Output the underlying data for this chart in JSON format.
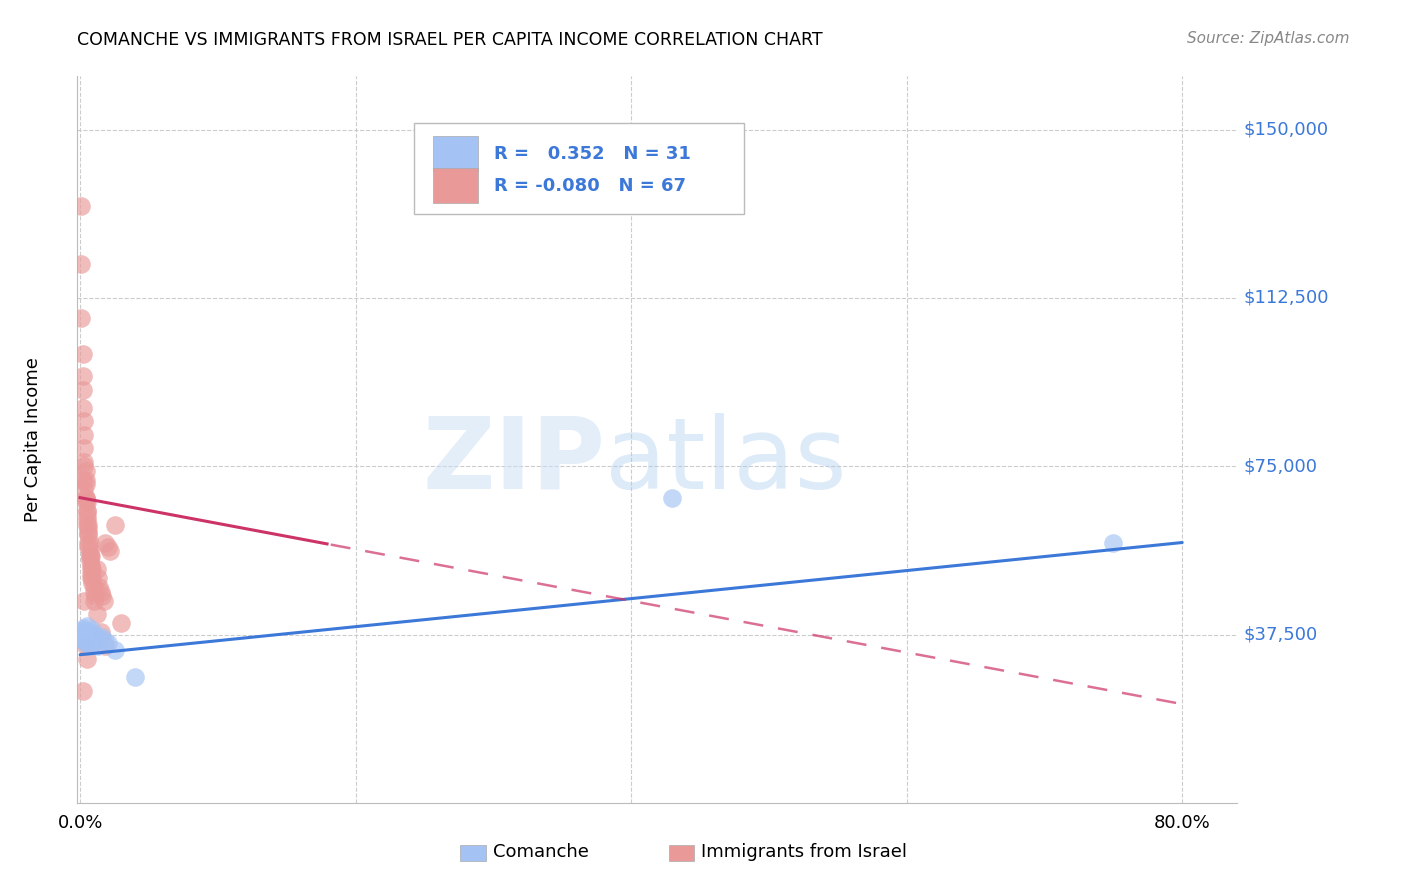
{
  "title": "COMANCHE VS IMMIGRANTS FROM ISRAEL PER CAPITA INCOME CORRELATION CHART",
  "source": "Source: ZipAtlas.com",
  "ylabel": "Per Capita Income",
  "blue_color": "#a4c2f4",
  "pink_color": "#ea9999",
  "blue_line_color": "#3c78d8",
  "pink_line_color": "#cc3366",
  "pink_dash_color": "#cc3366",
  "ylim_max": 162000,
  "xlim_min": -0.002,
  "xlim_max": 0.84,
  "ytick_vals": [
    37500,
    75000,
    112500,
    150000
  ],
  "ytick_labels": [
    "$37,500",
    "$75,000",
    "$112,500",
    "$150,000"
  ],
  "comanche_x": [
    0.001,
    0.002,
    0.002,
    0.003,
    0.003,
    0.003,
    0.004,
    0.004,
    0.005,
    0.005,
    0.005,
    0.006,
    0.006,
    0.007,
    0.007,
    0.008,
    0.008,
    0.009,
    0.01,
    0.01,
    0.011,
    0.012,
    0.013,
    0.015,
    0.016,
    0.018,
    0.02,
    0.025,
    0.43,
    0.75,
    0.04
  ],
  "comanche_y": [
    37000,
    36500,
    38500,
    37500,
    36000,
    39000,
    35500,
    38000,
    37000,
    39500,
    36500,
    37500,
    36000,
    38000,
    35000,
    37000,
    36500,
    38500,
    36000,
    37500,
    36000,
    37000,
    35000,
    36500,
    37000,
    36000,
    35500,
    34000,
    68000,
    58000,
    28000
  ],
  "israel_x": [
    0.001,
    0.001,
    0.001,
    0.002,
    0.002,
    0.002,
    0.002,
    0.003,
    0.003,
    0.003,
    0.003,
    0.004,
    0.004,
    0.004,
    0.005,
    0.005,
    0.005,
    0.006,
    0.006,
    0.006,
    0.006,
    0.007,
    0.007,
    0.007,
    0.008,
    0.008,
    0.008,
    0.009,
    0.009,
    0.01,
    0.01,
    0.011,
    0.012,
    0.013,
    0.014,
    0.015,
    0.016,
    0.017,
    0.018,
    0.02,
    0.022,
    0.025,
    0.03,
    0.003,
    0.004,
    0.004,
    0.005,
    0.005,
    0.006,
    0.007,
    0.008,
    0.003,
    0.004,
    0.005,
    0.006,
    0.007,
    0.008,
    0.009,
    0.01,
    0.012,
    0.015,
    0.018,
    0.002,
    0.002,
    0.003,
    0.004,
    0.005
  ],
  "israel_y": [
    133000,
    120000,
    108000,
    100000,
    95000,
    92000,
    88000,
    85000,
    82000,
    79000,
    76000,
    74000,
    71000,
    68000,
    67000,
    65000,
    63000,
    62000,
    60000,
    58000,
    57000,
    56000,
    55000,
    54000,
    53000,
    52000,
    51000,
    50000,
    49000,
    48000,
    47000,
    46000,
    52000,
    50000,
    48000,
    47000,
    46000,
    45000,
    58000,
    57000,
    56000,
    62000,
    40000,
    75000,
    72000,
    68000,
    65000,
    62000,
    60000,
    55000,
    50000,
    70000,
    67000,
    64000,
    61000,
    58000,
    55000,
    52000,
    45000,
    42000,
    38000,
    35000,
    72000,
    25000,
    45000,
    35000,
    32000
  ]
}
